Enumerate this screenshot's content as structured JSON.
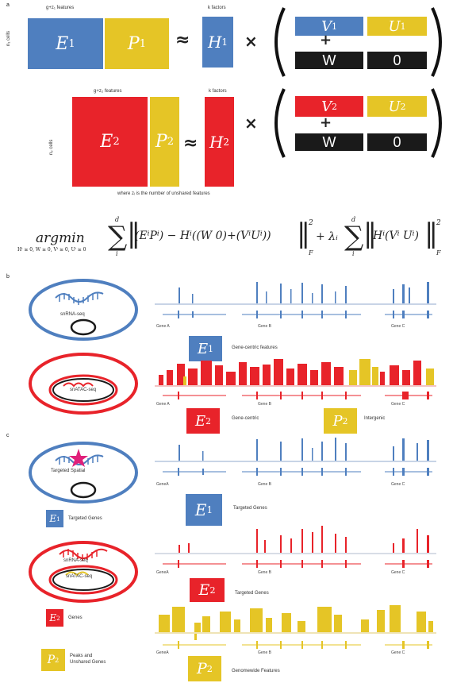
{
  "panel_a": {
    "letter": "a",
    "top_features_label": "g+z₁ features",
    "top_cells_label": "n₁ cells",
    "top_k_label": "k factors",
    "bottom_features_label": "g+z₂ features",
    "bottom_cells_label": "n₂ cells",
    "bottom_k_label": "k factors",
    "caption": "where zᵢ is the number of unshared features",
    "approx": "≈",
    "times": "×",
    "plus": "+",
    "w_label": "W",
    "zero_label": "0",
    "E1": "E",
    "E1_sub": "1",
    "P1": "P",
    "P1_sub": "1",
    "H1": "H",
    "H1_sub": "1",
    "V1": "V",
    "V1_sub": "1",
    "U1": "U",
    "U1_sub": "1",
    "E2": "E",
    "E2_sub": "2",
    "P2": "P",
    "P2_sub": "2",
    "H2": "H",
    "H2_sub": "2",
    "V2": "V",
    "V2_sub": "2",
    "U2": "U",
    "U2_sub": "2"
  },
  "formula": {
    "argmin": "argmin",
    "constraints": "Hⁱ ≥ 0, W ≥ 0, Vⁱ ≥ 0, Uⁱ ≥ 0",
    "sum_top": "d",
    "sum_bottom": "i",
    "term1": "(EⁱPⁱ) − Hⁱ((W 0)+(VⁱUⁱ))",
    "norm_sub": "F",
    "power": "2",
    "lambda": "+ λᵢ",
    "term2": "Hⁱ(Vⁱ Uⁱ)"
  },
  "panel_b": {
    "letter": "b",
    "cell1_label": "snRNA-seq",
    "cell2_label": "snATAC-seq",
    "genes": [
      "Gene A",
      "Gene B",
      "Gene C"
    ],
    "E1": "E",
    "E1_sub": "1",
    "E1_desc": "Gene-centric features",
    "E2": "E",
    "E2_sub": "2",
    "E2_desc": "Gene-centric",
    "P2": "P",
    "P2_sub": "2",
    "P2_desc": "Intergenic"
  },
  "panel_c": {
    "letter": "c",
    "cell1_label": "Targeted Spatial",
    "cell2_label_rna": "snRNA-seq",
    "cell2_label_atac": "snATAC-seq",
    "genes_compact": [
      "GeneA",
      "Gene B",
      "Gene C"
    ],
    "E1": "E",
    "E1_sub": "1",
    "E1_left_desc": "Targeted Genes",
    "E1_right_desc": "Targeted Genes",
    "E2": "E",
    "E2_sub": "2",
    "E2_left_desc": "Genes",
    "E2_right_desc": "Targeted Genes",
    "P2": "P",
    "P2_sub": "2",
    "P2_left_desc_1": "Peaks and",
    "P2_left_desc_2": "Unshared Genes",
    "P2_right_desc": "Genomewide Features"
  },
  "colors": {
    "blue": "#4f7fbf",
    "yellow": "#e5c526",
    "red": "#e8232a",
    "black": "#1a1a1a"
  }
}
